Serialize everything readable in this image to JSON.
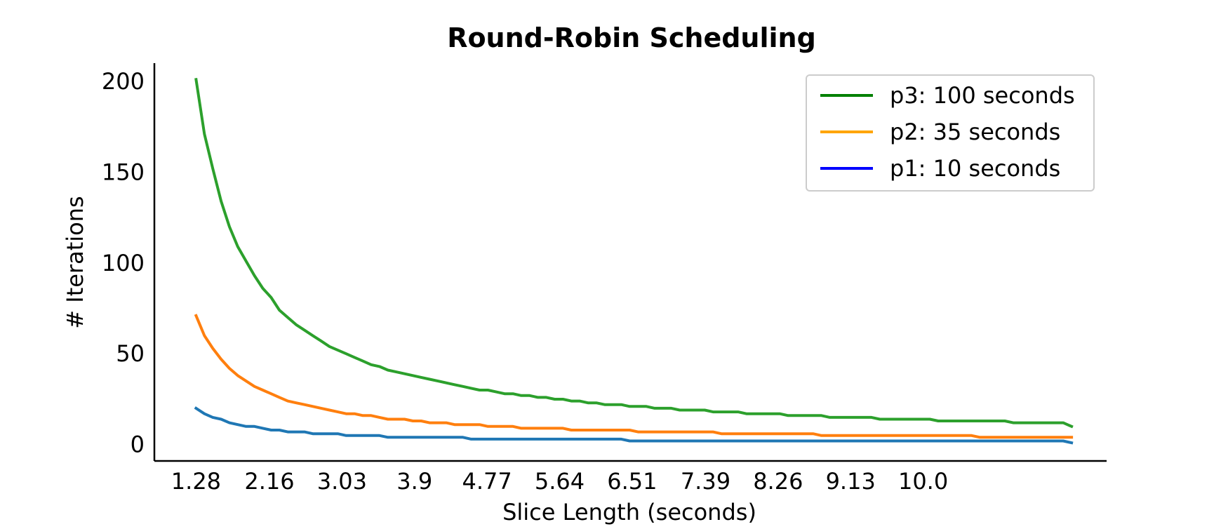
{
  "chart_data": {
    "type": "line",
    "title": "Round-Robin Scheduling",
    "xlabel": "Slice Length (seconds)",
    "ylabel": "# Iterations",
    "x_start": 1.28,
    "x_end": 11.7,
    "x_step": 0.1,
    "xlim": [
      0.78,
      12.2
    ],
    "ylim": [
      -9,
      210
    ],
    "xticks": [
      1.28,
      2.16,
      3.03,
      3.9,
      4.77,
      5.64,
      6.51,
      7.39,
      8.26,
      9.13,
      10.0
    ],
    "xtick_labels": [
      "1.28",
      "2.16",
      "3.03",
      "3.9",
      "4.77",
      "5.64",
      "6.51",
      "7.39",
      "8.26",
      "9.13",
      "10.0"
    ],
    "yticks": [
      0,
      50,
      100,
      150,
      200
    ],
    "ytick_labels": [
      "0",
      "50",
      "100",
      "150",
      "200"
    ],
    "grid": false,
    "legend_position": "top-right",
    "series": [
      {
        "name": "p3: 100 seconds",
        "total": 100,
        "color": "#2ca02c",
        "legend_color": "#008000",
        "values": [
          201,
          171,
          152,
          134,
          120,
          109,
          101,
          93,
          86,
          81,
          74,
          70,
          66,
          63,
          60,
          57,
          54,
          52,
          50,
          48,
          46,
          44,
          43,
          41,
          40,
          39,
          38,
          37,
          36,
          35,
          34,
          33,
          32,
          31,
          30,
          30,
          29,
          28,
          28,
          27,
          27,
          26,
          26,
          25,
          25,
          24,
          24,
          23,
          23,
          22,
          22,
          22,
          21,
          21,
          21,
          20,
          20,
          20,
          19,
          19,
          19,
          19,
          18,
          18,
          18,
          18,
          17,
          17,
          17,
          17,
          17,
          16,
          16,
          16,
          16,
          16,
          15,
          15,
          15,
          15,
          15,
          15,
          14,
          14,
          14,
          14,
          14,
          14,
          14,
          13,
          13,
          13,
          13,
          13,
          13,
          13,
          13,
          13,
          12,
          12,
          12,
          12,
          12,
          12,
          12,
          10
        ]
      },
      {
        "name": "p2: 35 seconds",
        "total": 35,
        "color": "#ff7f0e",
        "legend_color": "#ffa500",
        "values": [
          71,
          60,
          53,
          47,
          42,
          38,
          35,
          32,
          30,
          28,
          26,
          24,
          23,
          22,
          21,
          20,
          19,
          18,
          17,
          17,
          16,
          16,
          15,
          14,
          14,
          14,
          13,
          13,
          12,
          12,
          12,
          11,
          11,
          11,
          11,
          10,
          10,
          10,
          10,
          9,
          9,
          9,
          9,
          9,
          9,
          8,
          8,
          8,
          8,
          8,
          8,
          8,
          8,
          7,
          7,
          7,
          7,
          7,
          7,
          7,
          7,
          7,
          7,
          6,
          6,
          6,
          6,
          6,
          6,
          6,
          6,
          6,
          6,
          6,
          6,
          5,
          5,
          5,
          5,
          5,
          5,
          5,
          5,
          5,
          5,
          5,
          5,
          5,
          5,
          5,
          5,
          5,
          5,
          5,
          4,
          4,
          4,
          4,
          4,
          4,
          4,
          4,
          4,
          4,
          4,
          4
        ]
      },
      {
        "name": "p1: 10 seconds",
        "total": 10,
        "color": "#1f77b4",
        "legend_color": "#0000ff",
        "values": [
          20,
          17,
          15,
          14,
          12,
          11,
          10,
          10,
          9,
          8,
          8,
          7,
          7,
          7,
          6,
          6,
          6,
          6,
          5,
          5,
          5,
          5,
          5,
          4,
          4,
          4,
          4,
          4,
          4,
          4,
          4,
          4,
          4,
          3,
          3,
          3,
          3,
          3,
          3,
          3,
          3,
          3,
          3,
          3,
          3,
          3,
          3,
          3,
          3,
          3,
          3,
          3,
          2,
          2,
          2,
          2,
          2,
          2,
          2,
          2,
          2,
          2,
          2,
          2,
          2,
          2,
          2,
          2,
          2,
          2,
          2,
          2,
          2,
          2,
          2,
          2,
          2,
          2,
          2,
          2,
          2,
          2,
          2,
          2,
          2,
          2,
          2,
          2,
          2,
          2,
          2,
          2,
          2,
          2,
          2,
          2,
          2,
          2,
          2,
          2,
          2,
          2,
          2,
          2,
          2,
          1
        ]
      }
    ]
  }
}
